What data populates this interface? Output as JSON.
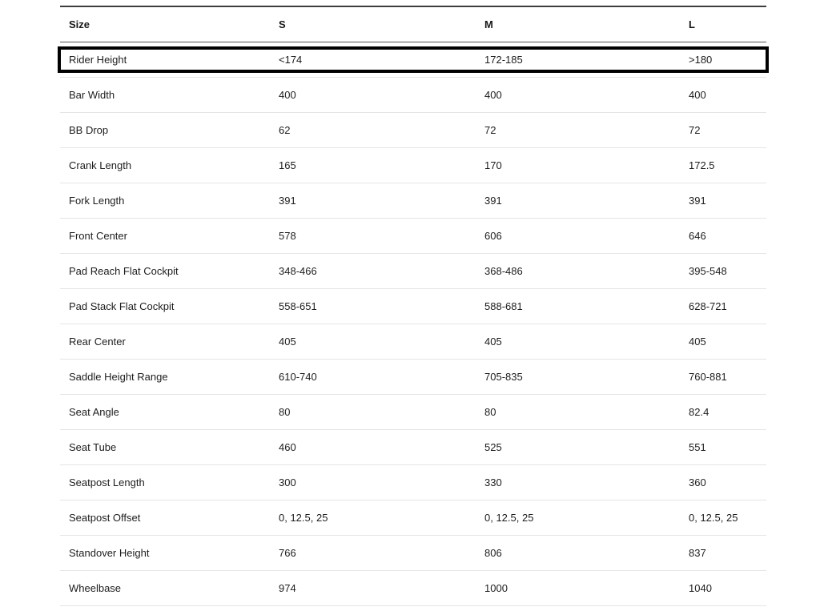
{
  "chart_data": {
    "type": "table",
    "columns": [
      "Size",
      "S",
      "M",
      "L"
    ],
    "rows": [
      {
        "label": "Rider Height",
        "values": [
          "<174",
          "172-185",
          ">180"
        ],
        "highlighted": true
      },
      {
        "label": "Bar Width",
        "values": [
          "400",
          "400",
          "400"
        ],
        "highlighted": false
      },
      {
        "label": "BB Drop",
        "values": [
          "62",
          "72",
          "72"
        ],
        "highlighted": false
      },
      {
        "label": "Crank Length",
        "values": [
          "165",
          "170",
          "172.5"
        ],
        "highlighted": false
      },
      {
        "label": "Fork Length",
        "values": [
          "391",
          "391",
          "391"
        ],
        "highlighted": false
      },
      {
        "label": "Front Center",
        "values": [
          "578",
          "606",
          "646"
        ],
        "highlighted": false
      },
      {
        "label": "Pad Reach Flat Cockpit",
        "values": [
          "348-466",
          "368-486",
          "395-548"
        ],
        "highlighted": false
      },
      {
        "label": "Pad Stack Flat Cockpit",
        "values": [
          "558-651",
          "588-681",
          "628-721"
        ],
        "highlighted": false
      },
      {
        "label": "Rear Center",
        "values": [
          "405",
          "405",
          "405"
        ],
        "highlighted": false
      },
      {
        "label": "Saddle Height Range",
        "values": [
          "610-740",
          "705-835",
          "760-881"
        ],
        "highlighted": false
      },
      {
        "label": "Seat Angle",
        "values": [
          "80",
          "80",
          "82.4"
        ],
        "highlighted": false
      },
      {
        "label": "Seat Tube",
        "values": [
          "460",
          "525",
          "551"
        ],
        "highlighted": false
      },
      {
        "label": "Seatpost Length",
        "values": [
          "300",
          "330",
          "360"
        ],
        "highlighted": false
      },
      {
        "label": "Seatpost Offset",
        "values": [
          "0, 12.5, 25",
          "0, 12.5, 25",
          "0, 12.5, 25"
        ],
        "highlighted": false
      },
      {
        "label": "Standover Height",
        "values": [
          "766",
          "806",
          "837"
        ],
        "highlighted": false
      },
      {
        "label": "Wheelbase",
        "values": [
          "974",
          "1000",
          "1040"
        ],
        "highlighted": false
      }
    ]
  },
  "highlight": {
    "target_row": "Rider Height",
    "color": "#000000"
  }
}
